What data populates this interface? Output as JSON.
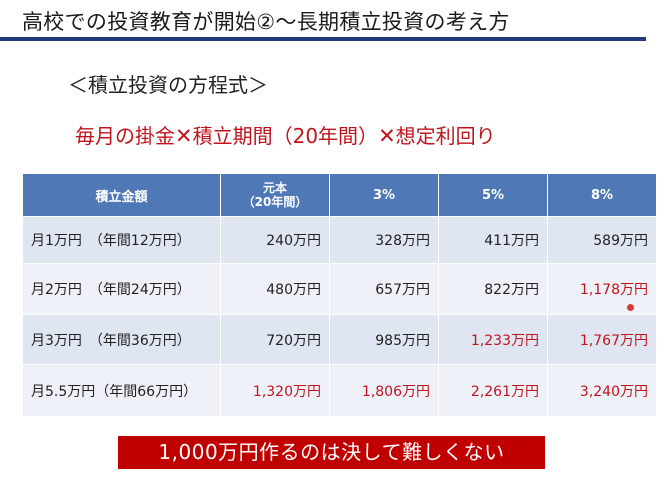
{
  "slide": {
    "title": "高校での投資教育が開始②～長期積立投資の考え方",
    "subtitle": "＜積立投資の方程式＞",
    "formula": {
      "part1": "毎月の掛金",
      "times1": "✕",
      "part2": "積立期間（20年間）",
      "times2": "✕",
      "part3": "想定利回り"
    },
    "conclusion": "1,000万円作るのは決して難しくない"
  },
  "table": {
    "headers": {
      "col0": "積立金額",
      "col1_line1": "元本",
      "col1_line2": "（20年間）",
      "col2": "3%",
      "col3": "5%",
      "col4": "8%"
    },
    "rows": [
      {
        "label": "月1万円　（年間12万円）",
        "c1": "240万円",
        "c2": "328万円",
        "c3": "411万円",
        "c4": "589万円"
      },
      {
        "label": "月2万円　（年間24万円）",
        "c1": "480万円",
        "c2": "657万円",
        "c3": "822万円",
        "c4": "1,178万円"
      },
      {
        "label": "月3万円　（年間36万円）",
        "c1": "720万円",
        "c2": "985万円",
        "c3": "1,233万円",
        "c4": "1,767万円"
      },
      {
        "label": "月5.5万円（年間66万円）",
        "c1": "1,320万円",
        "c2": "1,806万円",
        "c3": "2,261万円",
        "c4": "3,240万円"
      }
    ]
  },
  "colors": {
    "accent_red": "#c0141c",
    "header_blue": "#4e78b6",
    "title_rule": "#1f3c7a",
    "row_odd": "#dfe5f1",
    "row_even": "#eef1f7"
  }
}
